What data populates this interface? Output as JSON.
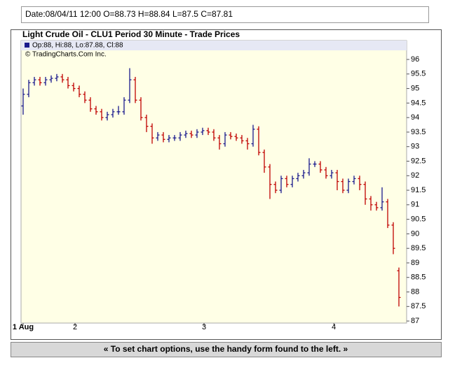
{
  "info_line": "Date:08/04/11 12:00 O=88.73 H=88.84 L=87.5 C=87.81",
  "footer_note": "« To set chart options, use the handy form found to the left. »",
  "chart_data": {
    "type": "ohlc",
    "title": "Light Crude Oil - CLU1 Period 30 Minute - Trade Prices",
    "ohlc_legend": "Op:88, Hi:88, Lo:87.88, Cl:88",
    "credit": "© TradingCharts.Com Inc.",
    "up_color": "#1a1a8c",
    "down_color": "#c00000",
    "open": [
      94.4,
      94.8,
      95.2,
      95.3,
      95.2,
      95.3,
      95.35,
      95.4,
      95.3,
      95.1,
      95.0,
      94.8,
      94.6,
      94.3,
      94.2,
      94.0,
      94.1,
      94.2,
      94.2,
      94.6,
      95.3,
      94.6,
      94.0,
      93.7,
      93.3,
      93.4,
      93.25,
      93.3,
      93.3,
      93.4,
      93.45,
      93.4,
      93.5,
      93.55,
      93.5,
      93.3,
      93.1,
      93.4,
      93.35,
      93.3,
      93.2,
      93.1,
      93.6,
      92.8,
      92.3,
      91.7,
      91.5,
      91.9,
      91.7,
      91.9,
      92.0,
      92.1,
      92.4,
      92.4,
      92.2,
      92.0,
      92.1,
      91.8,
      91.5,
      91.8,
      91.9,
      91.7,
      91.2,
      91.0,
      90.9,
      91.1,
      90.3,
      88.73
    ],
    "high": [
      95.0,
      95.3,
      95.4,
      95.4,
      95.4,
      95.45,
      95.5,
      95.5,
      95.4,
      95.2,
      95.1,
      94.9,
      94.7,
      94.4,
      94.3,
      94.2,
      94.3,
      94.4,
      94.7,
      95.7,
      95.4,
      94.7,
      94.1,
      93.8,
      93.5,
      93.5,
      93.4,
      93.4,
      93.5,
      93.55,
      93.55,
      93.6,
      93.65,
      93.65,
      93.6,
      93.4,
      93.5,
      93.5,
      93.45,
      93.4,
      93.3,
      93.75,
      93.7,
      92.9,
      92.4,
      91.8,
      92.0,
      92.0,
      92.0,
      92.1,
      92.2,
      92.6,
      92.5,
      92.5,
      92.3,
      92.2,
      92.2,
      91.9,
      91.9,
      92.0,
      92.0,
      91.8,
      91.3,
      91.1,
      91.6,
      91.2,
      90.4,
      88.84
    ],
    "low": [
      94.1,
      94.7,
      95.1,
      95.1,
      95.1,
      95.2,
      95.25,
      95.2,
      95.0,
      94.9,
      94.7,
      94.5,
      94.2,
      94.1,
      93.9,
      93.9,
      94.0,
      94.1,
      94.1,
      94.5,
      94.5,
      93.9,
      93.5,
      93.1,
      93.2,
      93.15,
      93.15,
      93.2,
      93.2,
      93.3,
      93.3,
      93.3,
      93.4,
      93.4,
      93.2,
      92.9,
      93.0,
      93.25,
      93.2,
      93.1,
      92.9,
      93.0,
      92.7,
      92.1,
      91.2,
      91.4,
      91.4,
      91.6,
      91.6,
      91.8,
      91.9,
      92.0,
      92.3,
      92.1,
      91.9,
      91.9,
      91.5,
      91.4,
      91.4,
      91.7,
      91.5,
      91.0,
      90.8,
      90.8,
      90.8,
      90.2,
      89.3,
      87.5
    ],
    "close": [
      94.8,
      95.2,
      95.3,
      95.2,
      95.3,
      95.35,
      95.4,
      95.3,
      95.1,
      95.0,
      94.8,
      94.6,
      94.3,
      94.2,
      94.0,
      94.1,
      94.2,
      94.2,
      94.6,
      95.3,
      94.6,
      94.0,
      93.7,
      93.3,
      93.4,
      93.25,
      93.3,
      93.3,
      93.4,
      93.45,
      93.4,
      93.5,
      93.55,
      93.5,
      93.3,
      93.1,
      93.4,
      93.35,
      93.3,
      93.2,
      93.1,
      93.6,
      92.8,
      92.3,
      91.7,
      91.5,
      91.9,
      91.7,
      91.9,
      92.0,
      92.1,
      92.4,
      92.4,
      92.2,
      92.0,
      92.1,
      91.8,
      91.5,
      91.8,
      91.9,
      91.7,
      91.2,
      91.0,
      90.9,
      91.1,
      90.3,
      89.5,
      87.81
    ],
    "xlim": [
      -0.375,
      68.375
    ],
    "xticks": [
      {
        "value": 0,
        "label": "1 Aug"
      },
      {
        "value": 9.25,
        "label": "2"
      },
      {
        "value": 32.25,
        "label": "3"
      },
      {
        "value": 55.4,
        "label": "4"
      }
    ],
    "ylim": [
      86.93,
      96.65
    ],
    "yticks": [
      87,
      87.5,
      88,
      88.5,
      89,
      89.5,
      90,
      90.5,
      91,
      91.5,
      92,
      92.5,
      93,
      93.5,
      94,
      94.5,
      95,
      95.5,
      96
    ],
    "grid": false
  }
}
